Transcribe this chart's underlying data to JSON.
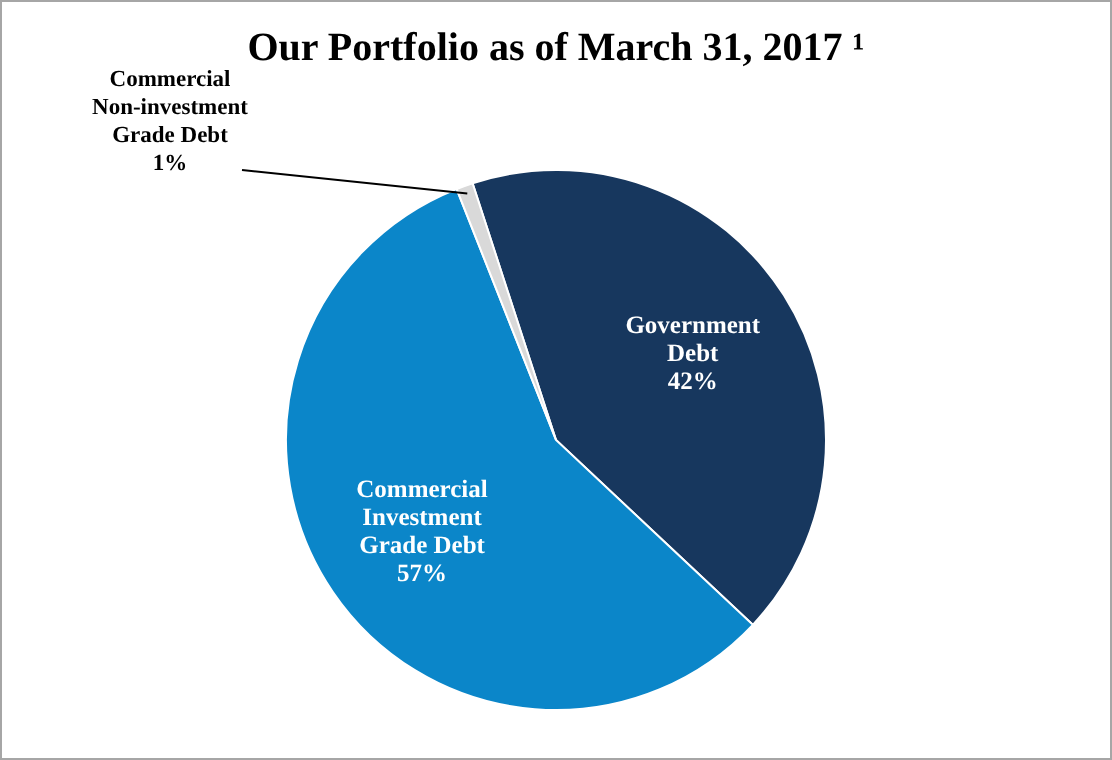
{
  "chart_data": {
    "type": "pie",
    "title": "Our Portfolio as of March 31, 2017 ¹",
    "categories": [
      "Government Debt",
      "Commercial Investment Grade Debt",
      "Commercial Non-investment Grade Debt"
    ],
    "values": [
      42,
      57,
      1
    ],
    "colors": [
      "#17375e",
      "#0b86c9",
      "#d9d9d9"
    ],
    "value_labels": [
      "42%",
      "57%",
      "1%"
    ]
  }
}
